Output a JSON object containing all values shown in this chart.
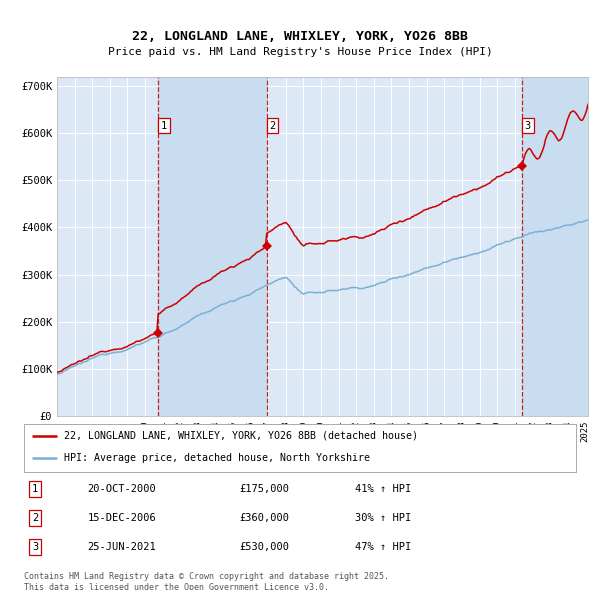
{
  "title": "22, LONGLAND LANE, WHIXLEY, YORK, YO26 8BB",
  "subtitle": "Price paid vs. HM Land Registry's House Price Index (HPI)",
  "background_color": "#ffffff",
  "plot_bg_color": "#dce8f5",
  "grid_color": "#ffffff",
  "sale_prices": [
    175000,
    360000,
    530000
  ],
  "sale_labels": [
    "1",
    "2",
    "3"
  ],
  "sale_pct": [
    "41% ↑ HPI",
    "30% ↑ HPI",
    "47% ↑ HPI"
  ],
  "sale_date_strs": [
    "20-OCT-2000",
    "15-DEC-2006",
    "25-JUN-2021"
  ],
  "red_color": "#cc0000",
  "blue_color": "#7ab0d4",
  "shade_color": "#c8ddf0",
  "dashed_color": "#cc0000",
  "legend_line1": "22, LONGLAND LANE, WHIXLEY, YORK, YO26 8BB (detached house)",
  "legend_line2": "HPI: Average price, detached house, North Yorkshire",
  "footer": "Contains HM Land Registry data © Crown copyright and database right 2025.\nThis data is licensed under the Open Government Licence v3.0.",
  "ylim": [
    0,
    720000
  ],
  "yticks": [
    0,
    100000,
    200000,
    300000,
    400000,
    500000,
    600000,
    700000
  ],
  "ytick_labels": [
    "£0",
    "£100K",
    "£200K",
    "£300K",
    "£400K",
    "£500K",
    "£600K",
    "£700K"
  ]
}
